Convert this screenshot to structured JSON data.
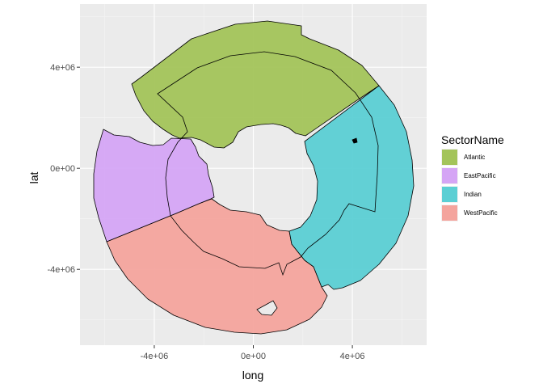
{
  "chart_data": {
    "type": "map",
    "xlabel": "long",
    "ylabel": "lat",
    "xlim": [
      -7000000,
      7000000
    ],
    "ylim": [
      -7000000,
      6500000
    ],
    "x_ticks": [
      -4000000,
      0,
      4000000
    ],
    "x_tick_labels": [
      "-4e+06",
      "0e+00",
      "4e+06"
    ],
    "y_ticks": [
      4000000,
      0,
      -4000000
    ],
    "y_tick_labels": [
      "4e+06",
      "0e+00",
      "-4e+06"
    ],
    "grid": true,
    "panel_background": "#ebebeb",
    "legend": {
      "title": "SectorName",
      "position": "right"
    },
    "series": [
      {
        "name": "Atlantic",
        "color": "#a3c45a"
      },
      {
        "name": "EastPacific",
        "color": "#d5a5f5"
      },
      {
        "name": "Indian",
        "color": "#5bcfd4"
      },
      {
        "name": "WestPacific",
        "color": "#f4a49d"
      }
    ],
    "ring": {
      "inner_radius_approx": 2500000,
      "outer_radius_approx": 6500000,
      "boundary_radius_approx": 5000000
    }
  }
}
